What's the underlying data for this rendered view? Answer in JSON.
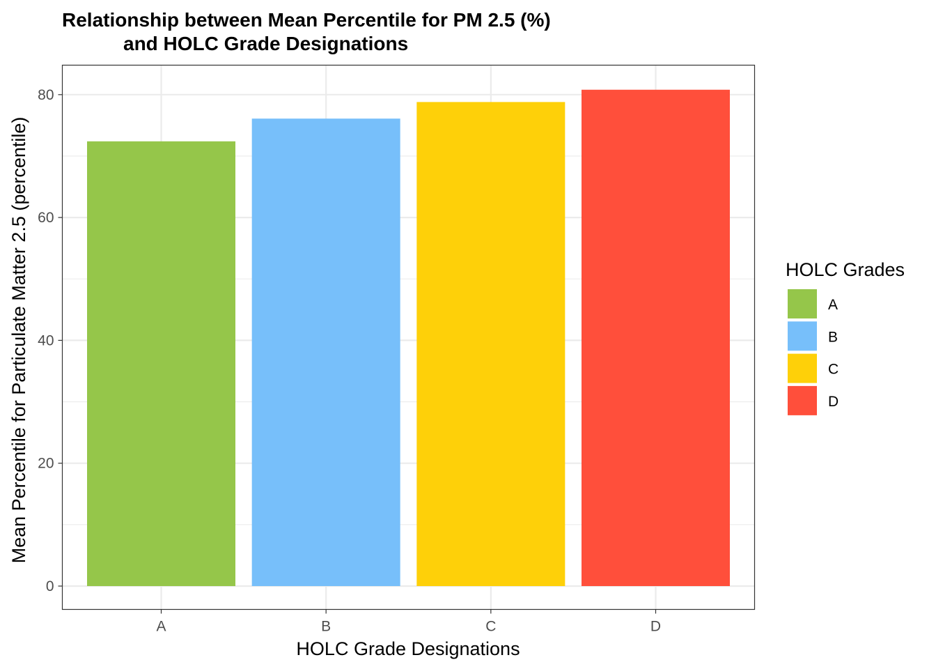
{
  "chart_data": {
    "type": "bar",
    "title": "Relationship between Mean Percentile for PM 2.5 (%)",
    "title_line2": "and HOLC Grade Designations",
    "xlabel": "HOLC Grade Designations",
    "ylabel": "Mean Percentile for Particulate Matter 2.5 (percentile)",
    "categories": [
      "A",
      "B",
      "C",
      "D"
    ],
    "values": [
      72.4,
      76.1,
      78.8,
      80.8
    ],
    "colors": [
      "#95c64a",
      "#77bffa",
      "#fed009",
      "#ff4f3b"
    ],
    "ylim": [
      -3.8,
      84.8
    ],
    "yticks": [
      0,
      20,
      40,
      60,
      80
    ],
    "grid": true,
    "legend": {
      "title": "HOLC Grades",
      "placement": "right",
      "entries": [
        "A",
        "B",
        "C",
        "D"
      ]
    }
  }
}
